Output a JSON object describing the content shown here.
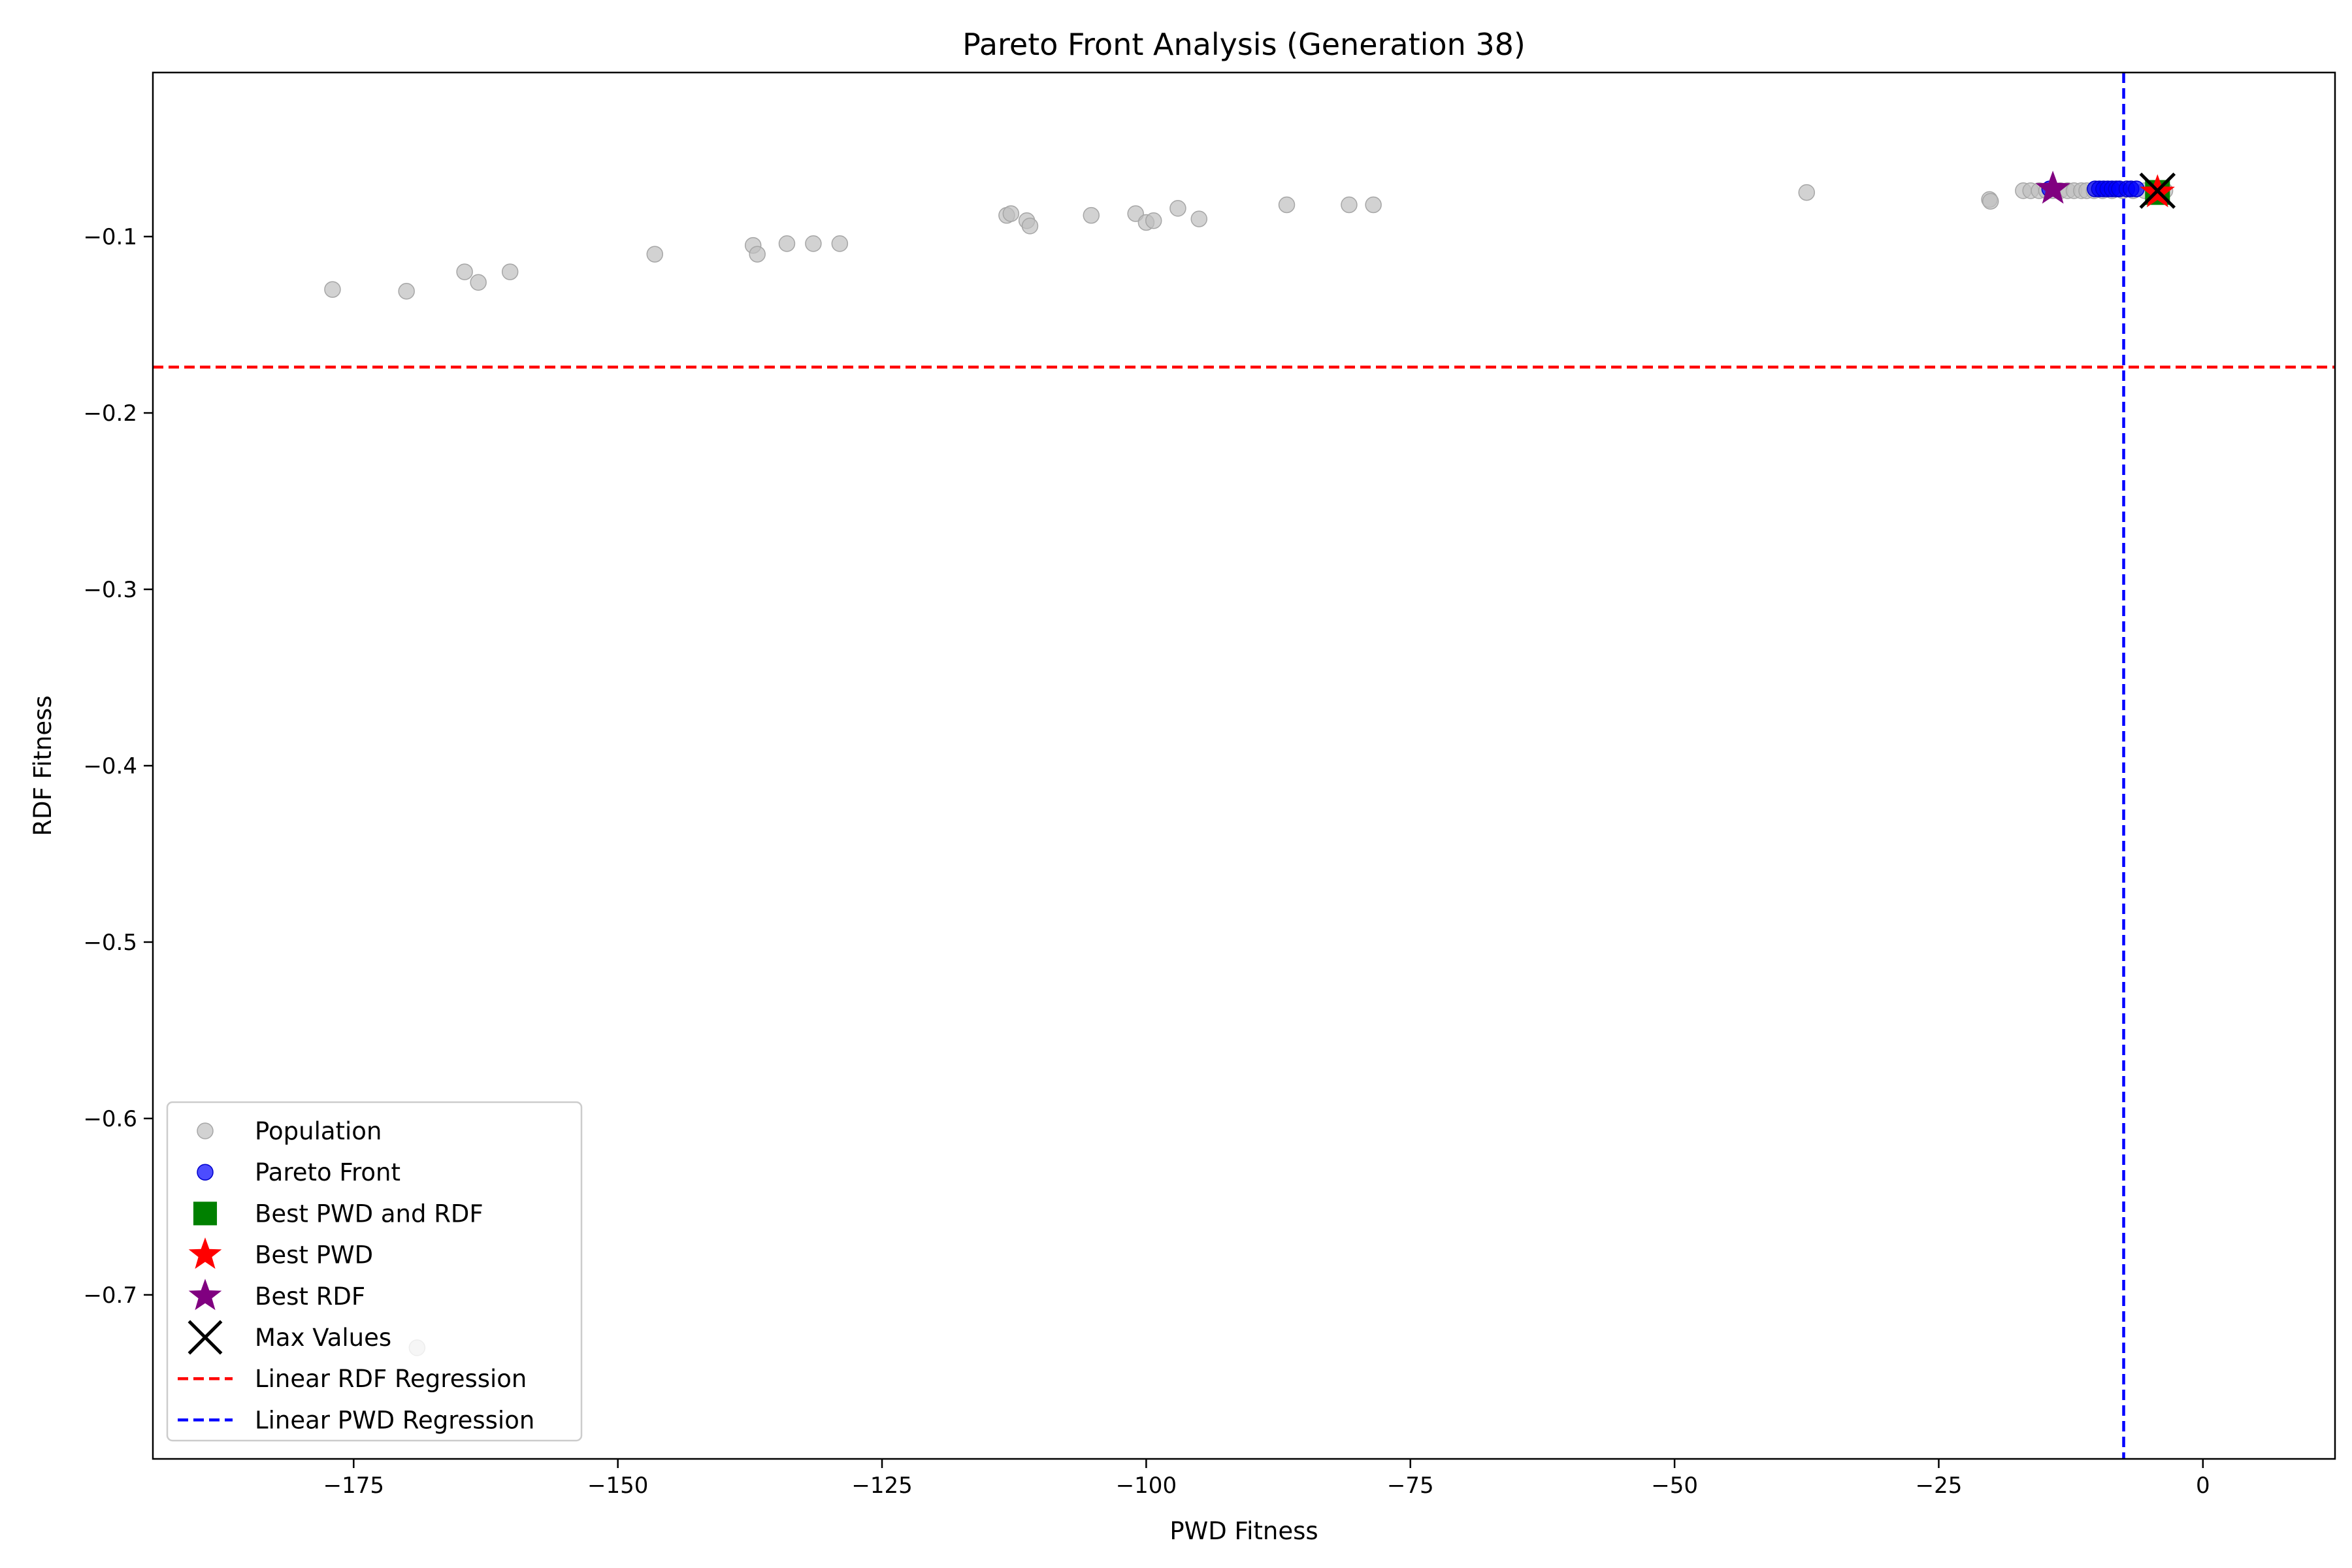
{
  "chart_data": {
    "type": "scatter",
    "title": "Pareto Front Analysis (Generation 38)",
    "xlabel": "PWD Fitness",
    "ylabel": "RDF Fitness",
    "xlim": [
      -194,
      12.5
    ],
    "ylim": [
      -0.793,
      -0.007
    ],
    "xticks": [
      -175,
      -150,
      -125,
      -100,
      -75,
      -50,
      -25,
      0
    ],
    "xtick_labels": [
      "−175",
      "−150",
      "−125",
      "−100",
      "−75",
      "−50",
      "−25",
      "0"
    ],
    "yticks": [
      -0.1,
      -0.2,
      -0.3,
      -0.4,
      -0.5,
      -0.6,
      -0.7
    ],
    "ytick_labels": [
      "−0.1",
      "−0.2",
      "−0.3",
      "−0.4",
      "−0.5",
      "−0.6",
      "−0.7"
    ],
    "grid": false,
    "legend_position": "lower-left",
    "colors": {
      "population": "#bfbfbf",
      "pareto": "#0000ff",
      "best_both": "#008000",
      "best_pwd": "#ff0000",
      "best_rdf": "#800080",
      "max": "#000000",
      "rdf_regression": "#ff0000",
      "pwd_regression": "#0000ff"
    },
    "series": [
      {
        "name": "Population",
        "marker": "circle",
        "points": [
          [
            -177,
            -0.13
          ],
          [
            -170,
            -0.131
          ],
          [
            -164.5,
            -0.12
          ],
          [
            -163.2,
            -0.126
          ],
          [
            -160.2,
            -0.12
          ],
          [
            -146.5,
            -0.11
          ],
          [
            -137.2,
            -0.105
          ],
          [
            -136.8,
            -0.11
          ],
          [
            -134,
            -0.104
          ],
          [
            -131.5,
            -0.104
          ],
          [
            -129,
            -0.104
          ],
          [
            -113.2,
            -0.088
          ],
          [
            -112.8,
            -0.087
          ],
          [
            -111.3,
            -0.091
          ],
          [
            -111,
            -0.094
          ],
          [
            -105.2,
            -0.088
          ],
          [
            -101,
            -0.087
          ],
          [
            -100,
            -0.092
          ],
          [
            -99.3,
            -0.091
          ],
          [
            -97,
            -0.084
          ],
          [
            -95,
            -0.09
          ],
          [
            -86.7,
            -0.082
          ],
          [
            -80.8,
            -0.082
          ],
          [
            -78.5,
            -0.082
          ],
          [
            -37.5,
            -0.075
          ],
          [
            -20.2,
            -0.079
          ],
          [
            -20.1,
            -0.08
          ],
          [
            -17,
            -0.074
          ],
          [
            -16.3,
            -0.074
          ],
          [
            -15.5,
            -0.074
          ],
          [
            -14.8,
            -0.074
          ],
          [
            -14.2,
            -0.074
          ],
          [
            -13.5,
            -0.074
          ],
          [
            -12.8,
            -0.074
          ],
          [
            -12.2,
            -0.074
          ],
          [
            -11.5,
            -0.074
          ],
          [
            -11,
            -0.074
          ],
          [
            -10.3,
            -0.074
          ],
          [
            -9.5,
            -0.074
          ],
          [
            -8.6,
            -0.074
          ],
          [
            -7.6,
            -0.074
          ],
          [
            -6.6,
            -0.074
          ],
          [
            -5.5,
            -0.074
          ],
          [
            -4.2,
            -0.074
          ],
          [
            -3.6,
            -0.074
          ],
          [
            -169,
            -0.73
          ]
        ]
      },
      {
        "name": "Pareto Front",
        "marker": "circle",
        "points": [
          [
            -14.5,
            -0.073
          ],
          [
            -10.2,
            -0.073
          ],
          [
            -9.8,
            -0.073
          ],
          [
            -9.4,
            -0.073
          ],
          [
            -9.0,
            -0.073
          ],
          [
            -8.6,
            -0.073
          ],
          [
            -8.2,
            -0.073
          ],
          [
            -7.9,
            -0.073
          ],
          [
            -7.2,
            -0.073
          ],
          [
            -6.8,
            -0.073
          ],
          [
            -6.3,
            -0.073
          ]
        ]
      },
      {
        "name": "Best PWD and RDF",
        "marker": "square",
        "points": [
          [
            -4.3,
            -0.075
          ]
        ]
      },
      {
        "name": "Best PWD",
        "marker": "star",
        "points": [
          [
            -4.3,
            -0.075
          ]
        ]
      },
      {
        "name": "Best RDF",
        "marker": "star",
        "points": [
          [
            -14.2,
            -0.073
          ]
        ]
      },
      {
        "name": "Max Values",
        "marker": "x",
        "points": [
          [
            -4.3,
            -0.074
          ]
        ]
      },
      {
        "name": "Linear RDF Regression",
        "line": "horizontal",
        "value": -0.174
      },
      {
        "name": "Linear PWD Regression",
        "line": "vertical",
        "value": -7.5
      }
    ]
  }
}
